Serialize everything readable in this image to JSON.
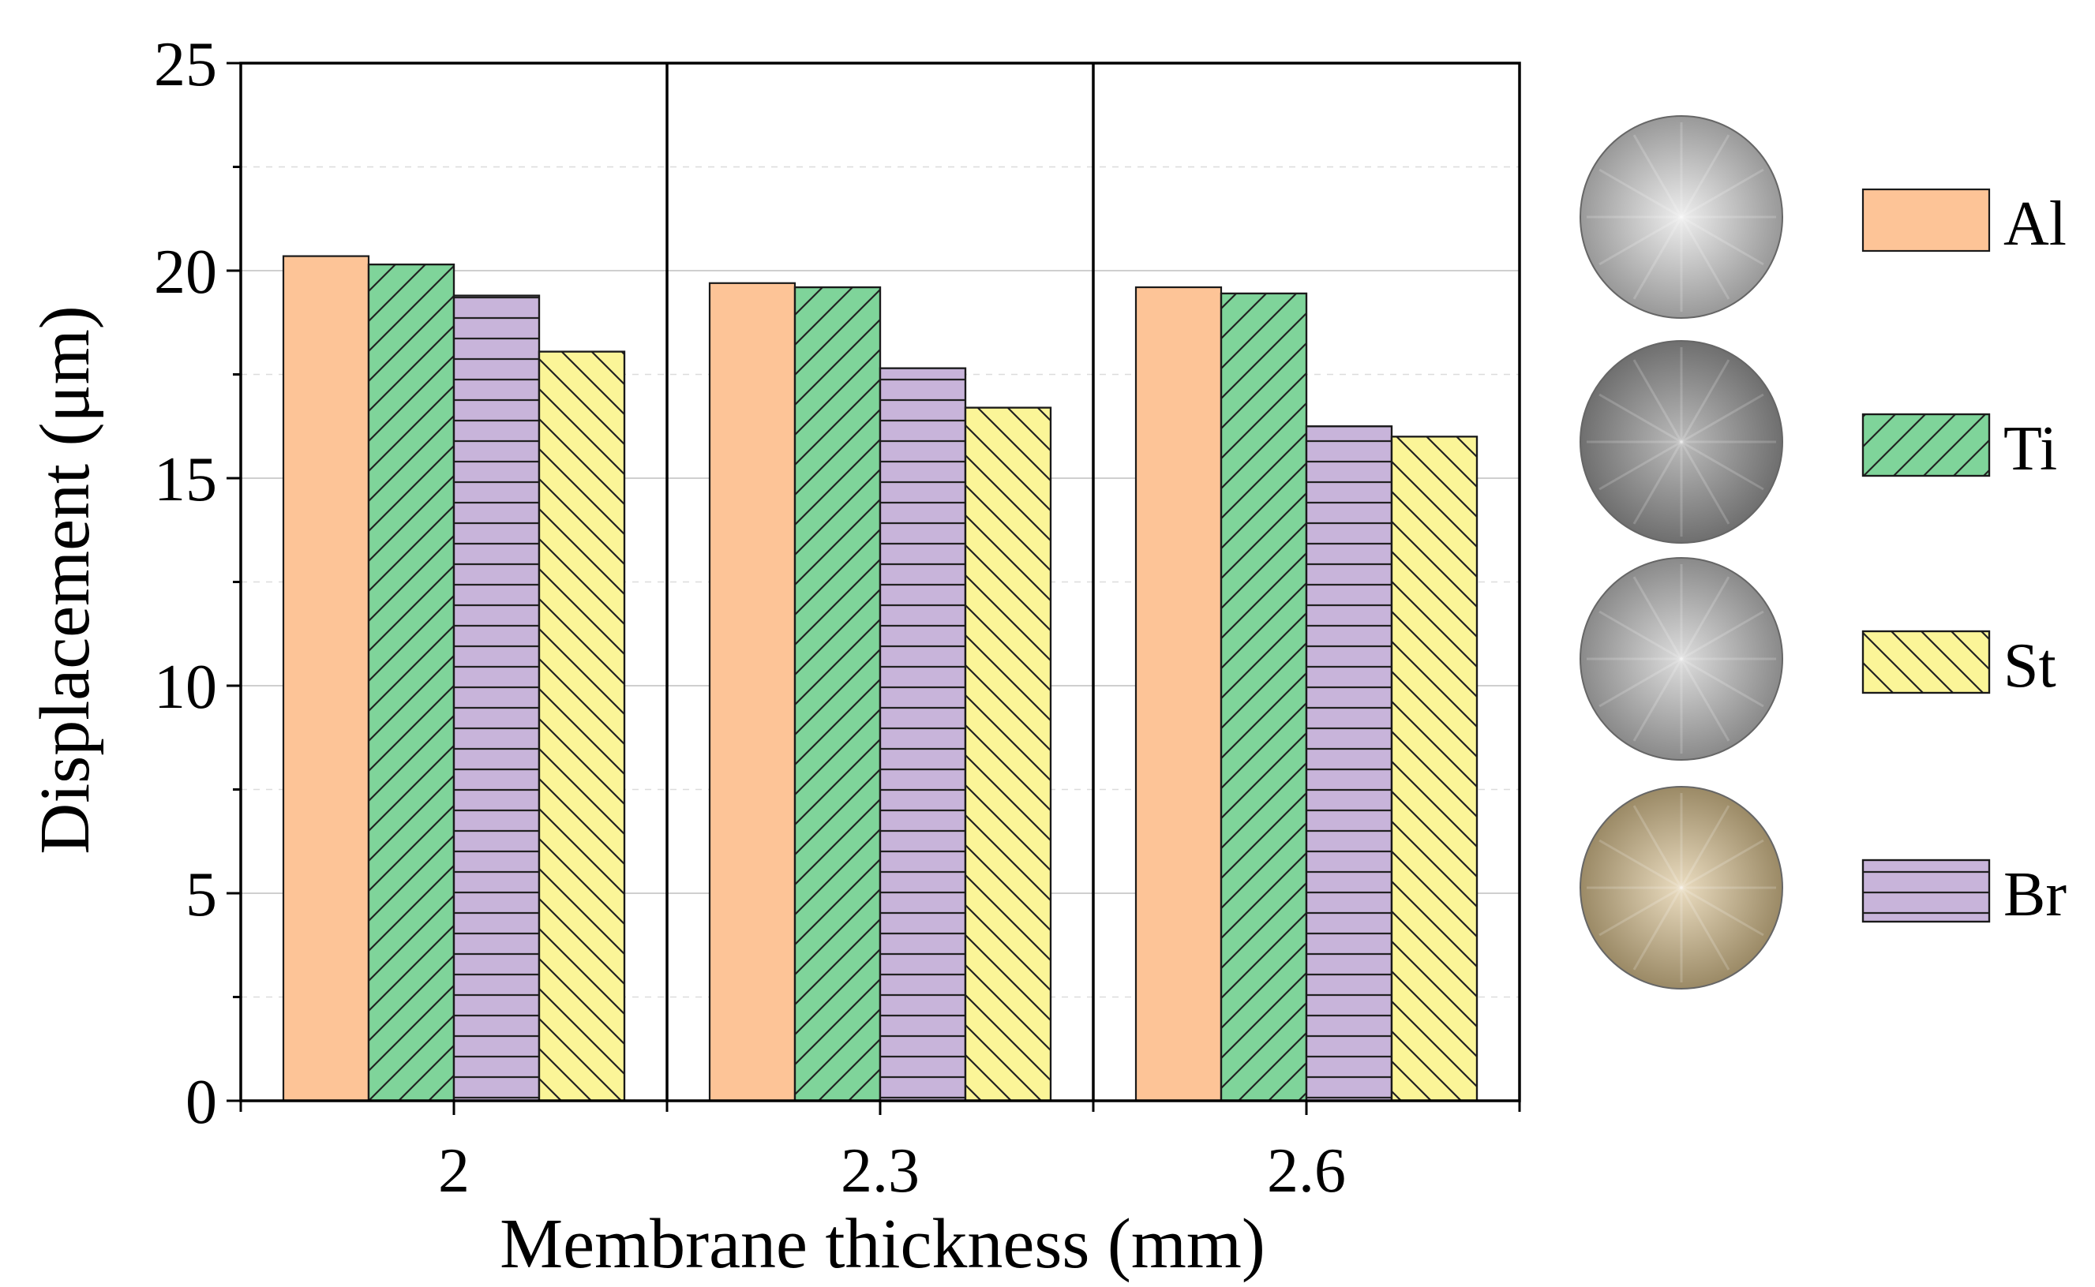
{
  "chart_data": {
    "type": "bar",
    "title": "",
    "xlabel": "Membrane thickness (mm)",
    "ylabel": "Displacement (μm)",
    "ylim": [
      0,
      25
    ],
    "yticks": [
      0,
      5,
      10,
      15,
      20,
      25
    ],
    "grid": true,
    "legend_position": "right",
    "categories": [
      "2",
      "2.3",
      "2.6"
    ],
    "series": [
      {
        "name": "Al",
        "values": [
          20.35,
          19.7,
          19.6
        ],
        "color": "#FDC497",
        "pattern": "none"
      },
      {
        "name": "Ti",
        "values": [
          20.15,
          19.6,
          19.45
        ],
        "color": "#7FD49A",
        "pattern": "diag-up"
      },
      {
        "name": "Br",
        "values": [
          19.4,
          17.65,
          16.25
        ],
        "color": "#C8B4DA",
        "pattern": "horizontal"
      },
      {
        "name": "St",
        "values": [
          18.05,
          16.7,
          16.0
        ],
        "color": "#FBF598",
        "pattern": "diag-down"
      }
    ],
    "legend_order": [
      "Al",
      "Ti",
      "St",
      "Br"
    ],
    "disc_colors": {
      "Al": [
        "#e6e6e6",
        "#a4a4a4"
      ],
      "Ti": [
        "#b9b9b9",
        "#777777"
      ],
      "St": [
        "#d4d4d4",
        "#929292"
      ],
      "Br": [
        "#e5d8bc",
        "#a59472"
      ]
    }
  }
}
